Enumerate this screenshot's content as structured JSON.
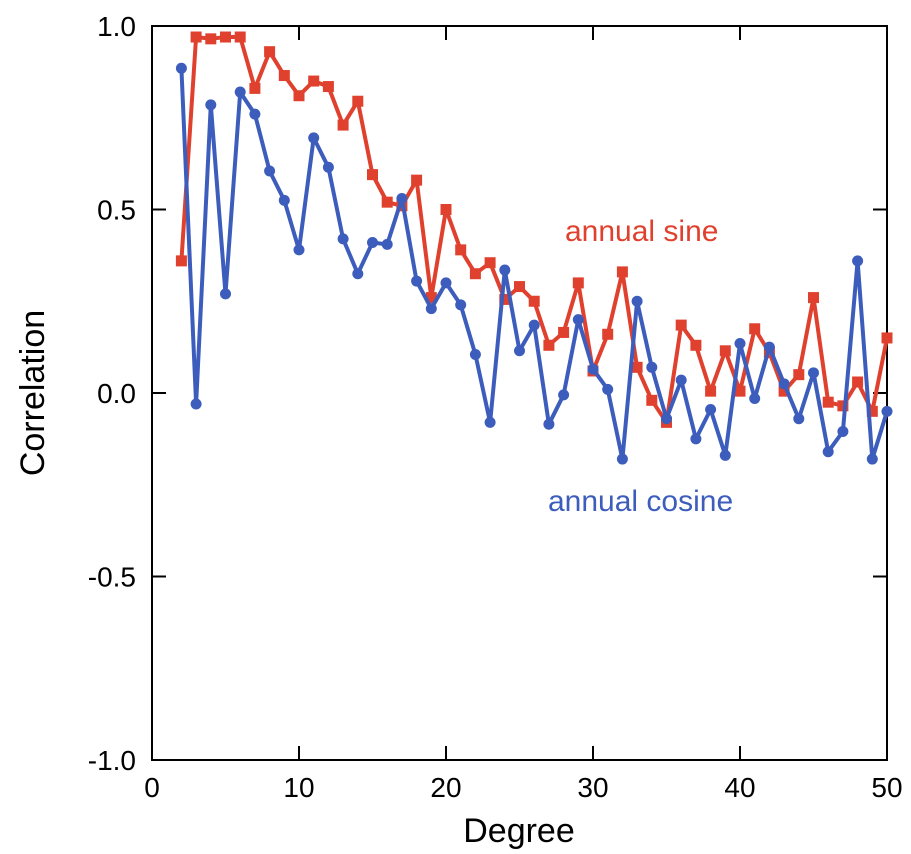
{
  "chart_data": {
    "type": "line",
    "xlabel": "Degree",
    "ylabel": "Correlation",
    "xlim": [
      0,
      50
    ],
    "ylim": [
      -1.0,
      1.0
    ],
    "x_ticks": [
      "0",
      "10",
      "20",
      "30",
      "40",
      "50"
    ],
    "y_ticks": [
      "-1.0",
      "-0.5",
      "0.0",
      "0.5",
      "1.0"
    ],
    "grid": false,
    "legend": "none (series labelled inline)",
    "x": [
      2,
      3,
      4,
      5,
      6,
      7,
      8,
      9,
      10,
      11,
      12,
      13,
      14,
      15,
      16,
      17,
      18,
      19,
      20,
      21,
      22,
      23,
      24,
      25,
      26,
      27,
      28,
      29,
      30,
      31,
      32,
      33,
      34,
      35,
      36,
      37,
      38,
      39,
      40,
      41,
      42,
      43,
      44,
      45,
      46,
      47,
      48,
      49,
      50
    ],
    "series": [
      {
        "name": "annual sine",
        "color": "#e0412e",
        "marker": "square",
        "values": [
          0.36,
          0.97,
          0.965,
          0.97,
          0.97,
          0.83,
          0.93,
          0.865,
          0.81,
          0.85,
          0.835,
          0.73,
          0.795,
          0.595,
          0.52,
          0.51,
          0.58,
          0.26,
          0.5,
          0.39,
          0.325,
          0.355,
          0.255,
          0.29,
          0.25,
          0.13,
          0.165,
          0.3,
          0.06,
          0.16,
          0.33,
          0.07,
          -0.02,
          -0.08,
          0.185,
          0.13,
          0.005,
          0.115,
          0.005,
          0.175,
          0.11,
          0.005,
          0.05,
          0.26,
          -0.025,
          -0.035,
          0.03,
          -0.05,
          0.15
        ]
      },
      {
        "name": "annual cosine",
        "color": "#3d5dbd",
        "marker": "circle",
        "values": [
          0.885,
          -0.03,
          0.785,
          0.27,
          0.82,
          0.76,
          0.605,
          0.525,
          0.39,
          0.695,
          0.615,
          0.42,
          0.325,
          0.41,
          0.405,
          0.53,
          0.305,
          0.23,
          0.3,
          0.24,
          0.105,
          -0.08,
          0.335,
          0.115,
          0.185,
          -0.085,
          -0.005,
          0.2,
          0.065,
          0.01,
          -0.18,
          0.25,
          0.07,
          -0.07,
          0.035,
          -0.125,
          -0.045,
          -0.17,
          0.135,
          -0.015,
          0.125,
          0.025,
          -0.07,
          0.055,
          -0.16,
          -0.105,
          0.36,
          -0.18,
          -0.05
        ]
      }
    ]
  }
}
